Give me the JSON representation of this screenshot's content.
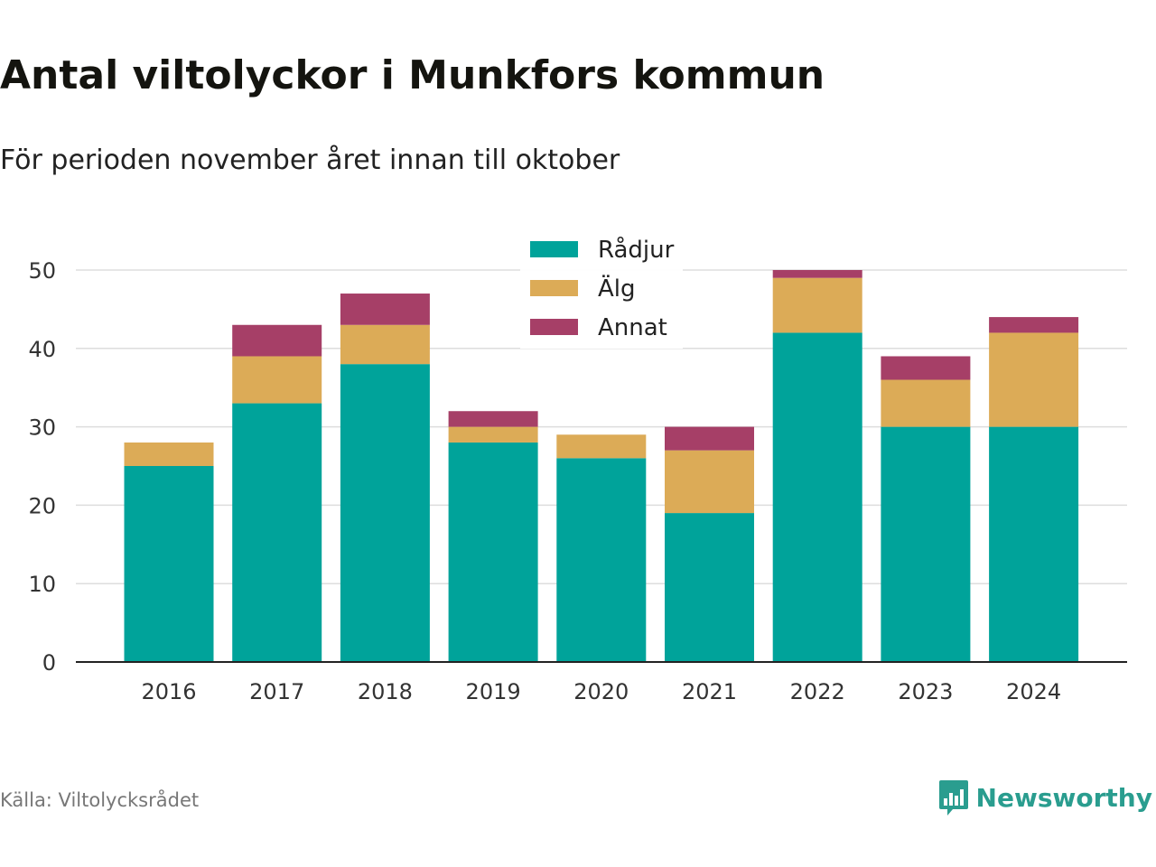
{
  "header": {
    "title": "Antal viltolyckor i Munkfors kommun",
    "subtitle": "För perioden november året innan till oktober"
  },
  "footer": {
    "source": "Källa: Viltolycksrådet",
    "brand": "Newsworthy",
    "brand_icon": "bar-chart-speech-bubble-icon"
  },
  "colors": {
    "Rådjur": "#00a39a",
    "Älg": "#dcab57",
    "Annat": "#a63f67",
    "grid": "#dddddd",
    "brand": "#2a9d8f"
  },
  "chart_data": {
    "type": "bar",
    "stacked": true,
    "categories": [
      "2016",
      "2017",
      "2018",
      "2019",
      "2020",
      "2021",
      "2022",
      "2023",
      "2024"
    ],
    "series": [
      {
        "name": "Rådjur",
        "values": [
          25,
          33,
          38,
          28,
          26,
          19,
          42,
          30,
          30
        ]
      },
      {
        "name": "Älg",
        "values": [
          3,
          6,
          5,
          2,
          3,
          8,
          7,
          6,
          12
        ]
      },
      {
        "name": "Annat",
        "values": [
          0,
          4,
          4,
          2,
          0,
          3,
          1,
          3,
          2
        ]
      }
    ],
    "y_ticks": [
      "0",
      "10",
      "20",
      "30",
      "40",
      "50"
    ],
    "ylim": [
      0,
      50
    ],
    "grid": true,
    "legend_position": "top-center"
  }
}
